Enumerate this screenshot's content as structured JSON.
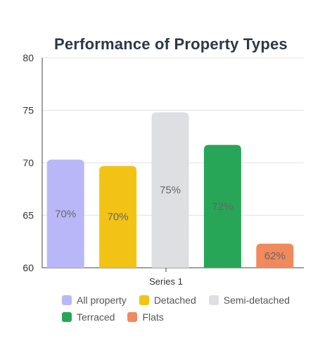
{
  "chart_data": {
    "type": "bar",
    "title": "Performance of Property Types",
    "categories": [
      "Series 1"
    ],
    "ylim": [
      60,
      80
    ],
    "yticks": [
      60,
      65,
      70,
      75,
      80
    ],
    "grid": true,
    "legend_position": "bottom",
    "series": [
      {
        "name": "All property",
        "values": [
          70.3
        ],
        "label": "70%",
        "color": "#b8b8f8"
      },
      {
        "name": "Detached",
        "values": [
          69.7
        ],
        "label": "70%",
        "color": "#f2c314"
      },
      {
        "name": "Semi-detached",
        "values": [
          74.8
        ],
        "label": "75%",
        "color": "#dedfe3"
      },
      {
        "name": "Terraced",
        "values": [
          71.7
        ],
        "label": "72%",
        "color": "#27a657"
      },
      {
        "name": "Flats",
        "values": [
          62.3
        ],
        "label": "62%",
        "color": "#f08a5c"
      }
    ]
  }
}
